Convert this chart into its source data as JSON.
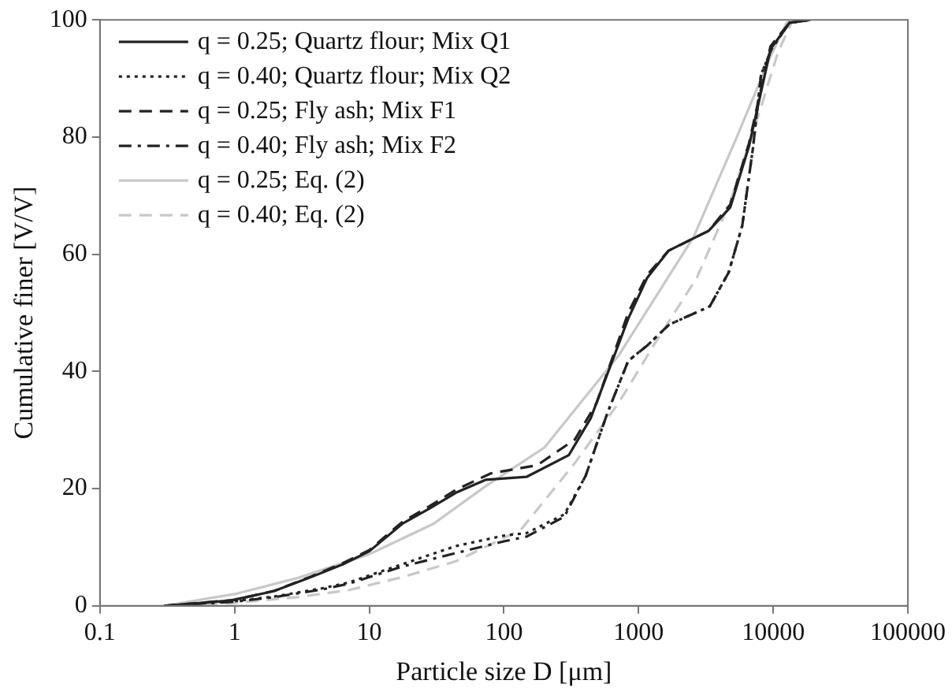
{
  "chart_data": {
    "type": "line",
    "xlabel": "Particle size D [μm]",
    "ylabel": "Cumulative finer [V/V]",
    "log": "x",
    "xlim": [
      0.1,
      100000
    ],
    "xticks": [
      0.1,
      1,
      10,
      100,
      1000,
      10000,
      100000
    ],
    "ylim": [
      0,
      100
    ],
    "yticks": [
      0,
      20,
      40,
      60,
      80,
      100
    ],
    "grid": false,
    "legend": "top left",
    "marker": "none",
    "series": [
      {
        "name": "q = 0.25; Quartz flour; Mix Q1",
        "color": "#222222",
        "line_style": "solid",
        "x": [
          0.3,
          0.93,
          1.95,
          3.7,
          6.4,
          10,
          17.6,
          28,
          44,
          73,
          147,
          303,
          441,
          838,
          1160,
          1670,
          3320,
          4800,
          6620,
          9550,
          13200,
          18800
        ],
        "values": [
          0,
          0.9,
          2.5,
          4.9,
          7.1,
          9.3,
          14,
          16.6,
          19.3,
          21.5,
          22,
          25.7,
          32,
          49,
          56,
          60.6,
          64,
          68,
          78.5,
          95,
          99.5,
          100
        ]
      },
      {
        "name": "q = 0.40; Quartz flour; Mix Q2",
        "color": "#222222",
        "line_style": "dotted",
        "x": [
          0.3,
          1,
          2,
          4.5,
          7.1,
          17.6,
          44,
          101,
          147,
          281,
          405,
          587,
          838,
          1170,
          1690,
          3380,
          4670,
          5890,
          7080,
          8130,
          9760,
          13200,
          18800
        ],
        "values": [
          0,
          0.8,
          1.6,
          3,
          4,
          7.1,
          10.2,
          12,
          12.4,
          15.6,
          22.2,
          32.9,
          41.8,
          44.5,
          48,
          51.1,
          56.9,
          64.9,
          78.2,
          90.7,
          95.1,
          99.5,
          100
        ]
      },
      {
        "name": "q = 0.25; Fly ash; Mix F1",
        "color": "#222222",
        "line_style": "dashed",
        "x": [
          0.3,
          1,
          2,
          3.7,
          6.4,
          10,
          17.6,
          28,
          44,
          80,
          177,
          337,
          488,
          838,
          1160,
          1670,
          3320,
          4800,
          6620,
          9550,
          13200,
          18800
        ],
        "values": [
          0,
          1,
          2.6,
          5,
          7.3,
          9.5,
          14.3,
          17,
          19.8,
          22.6,
          24,
          28.4,
          34.6,
          50,
          56.5,
          60.6,
          64,
          68.5,
          79,
          95.5,
          99.5,
          100
        ]
      },
      {
        "name": "q = 0.40; Fly ash; Mix F2",
        "color": "#222222",
        "line_style": "dashdot",
        "x": [
          0.3,
          1,
          2,
          4.5,
          7.1,
          17.6,
          44,
          100,
          147,
          281,
          405,
          587,
          838,
          1170,
          1690,
          3380,
          4670,
          5890,
          7080,
          8130,
          9760,
          13200,
          18800
        ],
        "values": [
          0,
          0.7,
          1.5,
          2.8,
          3.8,
          6.7,
          9,
          11,
          11.8,
          15.2,
          22.2,
          32.9,
          41.8,
          44.5,
          48,
          51.1,
          56.9,
          64.9,
          78.2,
          90.7,
          95.1,
          99.5,
          100
        ]
      },
      {
        "name": "q = 0.25; Eq. (2)",
        "color": "#c8c8c8",
        "line_style": "solid",
        "x": [
          0.3,
          1,
          3,
          10,
          30,
          73,
          200,
          710,
          2570,
          5370,
          9350,
          12600,
          14000
        ],
        "values": [
          0,
          2,
          4.8,
          8.8,
          14,
          20.4,
          27,
          42.7,
          63,
          80,
          93.3,
          99.5,
          100
        ]
      },
      {
        "name": "q = 0.40; Eq. (2)",
        "color": "#c8c8c8",
        "line_style": "dashed",
        "x": [
          0.3,
          1,
          3,
          7.1,
          17.6,
          44,
          134,
          337,
          710,
          1340,
          2710,
          4800,
          7590,
          10900,
          14000
        ],
        "values": [
          0,
          0.5,
          1.5,
          2.7,
          4.9,
          7.6,
          13,
          24.4,
          34.6,
          45,
          56,
          69,
          83,
          94.6,
          100
        ]
      }
    ]
  }
}
